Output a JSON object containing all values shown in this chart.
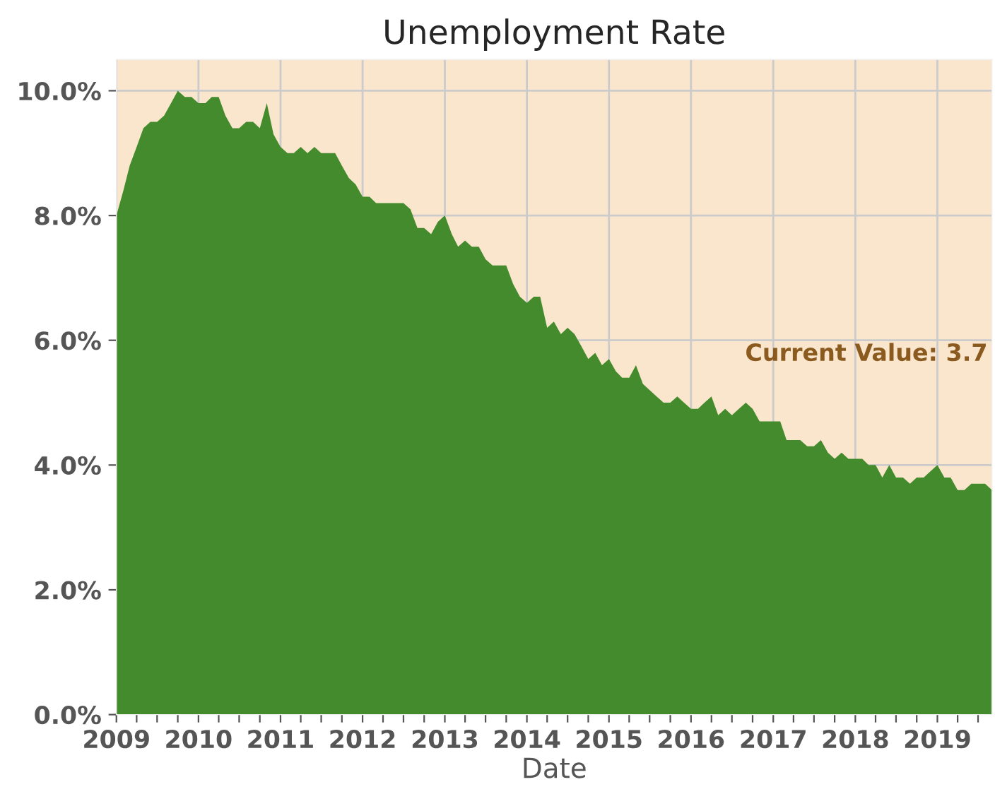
{
  "chart_data": {
    "type": "area",
    "title": "Unemployment Rate",
    "xlabel": "Date",
    "x": [
      "2009-01",
      "2009-02",
      "2009-03",
      "2009-04",
      "2009-05",
      "2009-06",
      "2009-07",
      "2009-08",
      "2009-09",
      "2009-10",
      "2009-11",
      "2009-12",
      "2010-01",
      "2010-02",
      "2010-03",
      "2010-04",
      "2010-05",
      "2010-06",
      "2010-07",
      "2010-08",
      "2010-09",
      "2010-10",
      "2010-11",
      "2010-12",
      "2011-01",
      "2011-02",
      "2011-03",
      "2011-04",
      "2011-05",
      "2011-06",
      "2011-07",
      "2011-08",
      "2011-09",
      "2011-10",
      "2011-11",
      "2011-12",
      "2012-01",
      "2012-02",
      "2012-03",
      "2012-04",
      "2012-05",
      "2012-06",
      "2012-07",
      "2012-08",
      "2012-09",
      "2012-10",
      "2012-11",
      "2012-12",
      "2013-01",
      "2013-02",
      "2013-03",
      "2013-04",
      "2013-05",
      "2013-06",
      "2013-07",
      "2013-08",
      "2013-09",
      "2013-10",
      "2013-11",
      "2013-12",
      "2014-01",
      "2014-02",
      "2014-03",
      "2014-04",
      "2014-05",
      "2014-06",
      "2014-07",
      "2014-08",
      "2014-09",
      "2014-10",
      "2014-11",
      "2014-12",
      "2015-01",
      "2015-02",
      "2015-03",
      "2015-04",
      "2015-05",
      "2015-06",
      "2015-07",
      "2015-08",
      "2015-09",
      "2015-10",
      "2015-11",
      "2015-12",
      "2016-01",
      "2016-02",
      "2016-03",
      "2016-04",
      "2016-05",
      "2016-06",
      "2016-07",
      "2016-08",
      "2016-09",
      "2016-10",
      "2016-11",
      "2016-12",
      "2017-01",
      "2017-02",
      "2017-03",
      "2017-04",
      "2017-05",
      "2017-06",
      "2017-07",
      "2017-08",
      "2017-09",
      "2017-10",
      "2017-11",
      "2017-12",
      "2018-01",
      "2018-02",
      "2018-03",
      "2018-04",
      "2018-05",
      "2018-06",
      "2018-07",
      "2018-08",
      "2018-09",
      "2018-10",
      "2018-11",
      "2018-12",
      "2019-01",
      "2019-02",
      "2019-03",
      "2019-04",
      "2019-05",
      "2019-06",
      "2019-07",
      "2019-08",
      "2019-09"
    ],
    "series": [
      {
        "color": "#438b2c",
        "values": [
          8.0,
          8.4,
          8.8,
          9.1,
          9.4,
          9.5,
          9.5,
          9.6,
          9.8,
          10.0,
          9.9,
          9.9,
          9.8,
          9.8,
          9.9,
          9.9,
          9.6,
          9.4,
          9.4,
          9.5,
          9.5,
          9.4,
          9.8,
          9.3,
          9.1,
          9.0,
          9.0,
          9.1,
          9.0,
          9.1,
          9.0,
          9.0,
          9.0,
          8.8,
          8.6,
          8.5,
          8.3,
          8.3,
          8.2,
          8.2,
          8.2,
          8.2,
          8.2,
          8.1,
          7.8,
          7.8,
          7.7,
          7.9,
          8.0,
          7.7,
          7.5,
          7.6,
          7.5,
          7.5,
          7.3,
          7.2,
          7.2,
          7.2,
          6.9,
          6.7,
          6.6,
          6.7,
          6.7,
          6.2,
          6.3,
          6.1,
          6.2,
          6.1,
          5.9,
          5.7,
          5.8,
          5.6,
          5.7,
          5.5,
          5.4,
          5.4,
          5.6,
          5.3,
          5.2,
          5.1,
          5.0,
          5.0,
          5.1,
          5.0,
          4.9,
          4.9,
          5.0,
          5.1,
          4.8,
          4.9,
          4.8,
          4.9,
          5.0,
          4.9,
          4.7,
          4.7,
          4.7,
          4.7,
          4.4,
          4.4,
          4.4,
          4.3,
          4.3,
          4.4,
          4.2,
          4.1,
          4.2,
          4.1,
          4.1,
          4.1,
          4.0,
          4.0,
          3.8,
          4.0,
          3.8,
          3.8,
          3.7,
          3.8,
          3.8,
          3.9,
          4.0,
          3.8,
          3.8,
          3.6,
          3.6,
          3.7,
          3.7,
          3.7,
          3.6
        ]
      }
    ],
    "xlim": [
      "2009-01",
      "2019-09"
    ],
    "xticks": [
      {
        "value": "2009-01",
        "label": "2009"
      },
      {
        "value": "2009-04",
        "label": null
      },
      {
        "value": "2009-07",
        "label": null
      },
      {
        "value": "2009-10",
        "label": null
      },
      {
        "value": "2010-01",
        "label": "2010"
      },
      {
        "value": "2010-04",
        "label": null
      },
      {
        "value": "2010-07",
        "label": null
      },
      {
        "value": "2010-10",
        "label": null
      },
      {
        "value": "2011-01",
        "label": "2011"
      },
      {
        "value": "2011-04",
        "label": null
      },
      {
        "value": "2011-07",
        "label": null
      },
      {
        "value": "2011-10",
        "label": null
      },
      {
        "value": "2012-01",
        "label": "2012"
      },
      {
        "value": "2012-04",
        "label": null
      },
      {
        "value": "2012-07",
        "label": null
      },
      {
        "value": "2012-10",
        "label": null
      },
      {
        "value": "2013-01",
        "label": "2013"
      },
      {
        "value": "2013-04",
        "label": null
      },
      {
        "value": "2013-07",
        "label": null
      },
      {
        "value": "2013-10",
        "label": null
      },
      {
        "value": "2014-01",
        "label": "2014"
      },
      {
        "value": "2014-04",
        "label": null
      },
      {
        "value": "2014-07",
        "label": null
      },
      {
        "value": "2014-10",
        "label": null
      },
      {
        "value": "2015-01",
        "label": "2015"
      },
      {
        "value": "2015-04",
        "label": null
      },
      {
        "value": "2015-07",
        "label": null
      },
      {
        "value": "2015-10",
        "label": null
      },
      {
        "value": "2016-01",
        "label": "2016"
      },
      {
        "value": "2016-04",
        "label": null
      },
      {
        "value": "2016-07",
        "label": null
      },
      {
        "value": "2016-10",
        "label": null
      },
      {
        "value": "2017-01",
        "label": "2017"
      },
      {
        "value": "2017-04",
        "label": null
      },
      {
        "value": "2017-07",
        "label": null
      },
      {
        "value": "2017-10",
        "label": null
      },
      {
        "value": "2018-01",
        "label": "2018"
      },
      {
        "value": "2018-04",
        "label": null
      },
      {
        "value": "2018-07",
        "label": null
      },
      {
        "value": "2018-10",
        "label": null
      },
      {
        "value": "2019-01",
        "label": "2019"
      },
      {
        "value": "2019-04",
        "label": null
      },
      {
        "value": "2019-07",
        "label": null
      }
    ],
    "ylim": [
      0,
      10.5
    ],
    "yticks": [
      {
        "value": 0,
        "label": "0.0%"
      },
      {
        "value": 2,
        "label": "2.0%"
      },
      {
        "value": 4,
        "label": "4.0%"
      },
      {
        "value": 6,
        "label": "6.0%"
      },
      {
        "value": 8,
        "label": "8.0%"
      },
      {
        "value": 10,
        "label": "10.0%"
      }
    ],
    "grid": true,
    "bands": [
      {
        "axis": "x",
        "from": "2009-01",
        "to": "2019-09",
        "color": "#fae6cc"
      }
    ],
    "annotations": [
      "Current Value: 3.7"
    ]
  }
}
